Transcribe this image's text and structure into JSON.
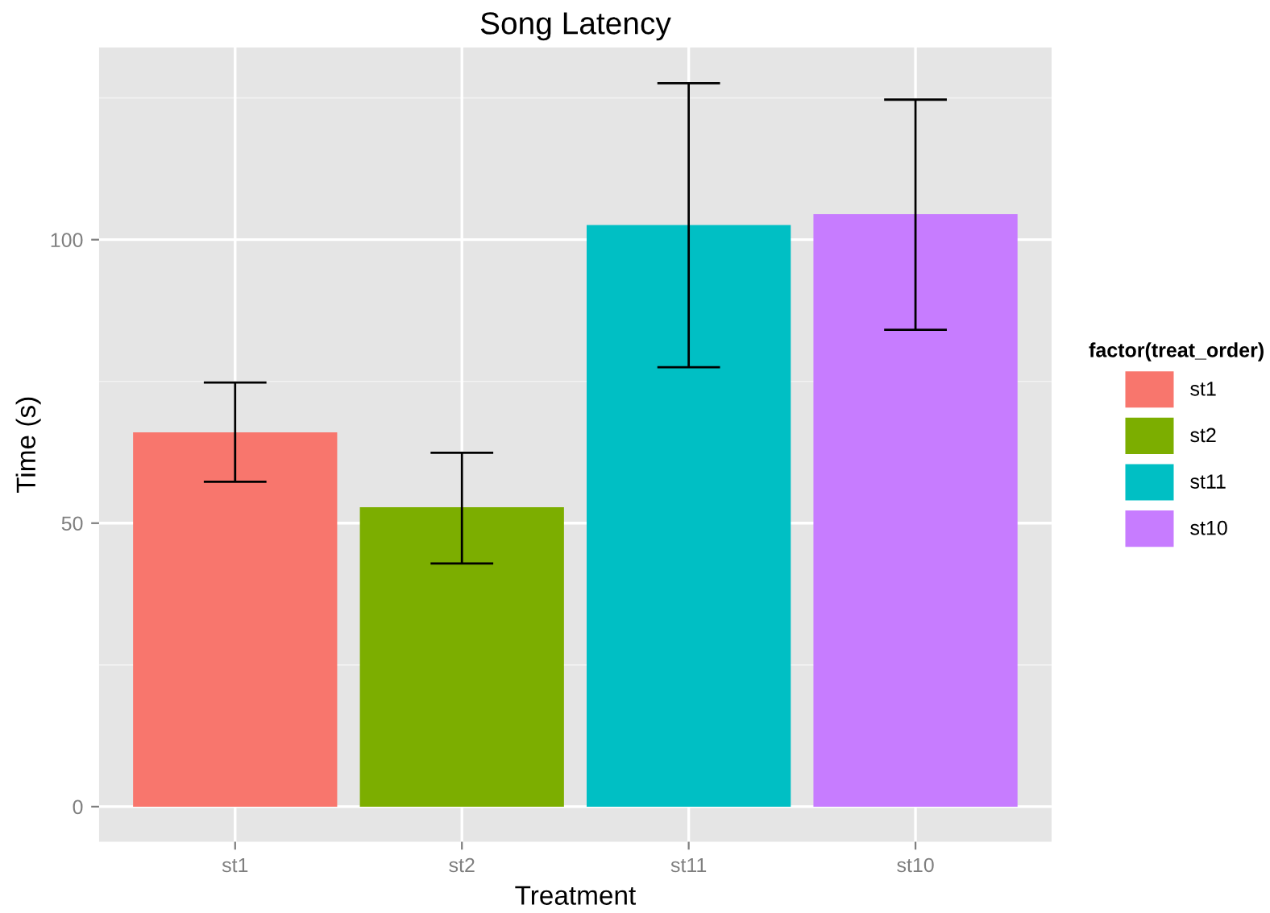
{
  "chart_data": {
    "type": "bar",
    "title": "Song Latency",
    "xlabel": "Treatment",
    "ylabel": "Time (s)",
    "legend_title": "factor(treat_order)",
    "categories": [
      "st1",
      "st2",
      "st11",
      "st10"
    ],
    "series": [
      {
        "name": "st1",
        "color": "#f8766d",
        "values": [
          66.0,
          null,
          null,
          null
        ],
        "errors": [
          [
            57.3,
            74.8
          ],
          null,
          null,
          null
        ]
      },
      {
        "name": "st2",
        "color": "#7cae00",
        "values": [
          null,
          52.8,
          null,
          null
        ],
        "errors": [
          null,
          [
            42.9,
            62.4
          ],
          null,
          null
        ]
      },
      {
        "name": "st11",
        "color": "#00bfc4",
        "values": [
          null,
          null,
          102.6,
          null
        ],
        "errors": [
          null,
          null,
          [
            77.5,
            127.6
          ],
          null
        ]
      },
      {
        "name": "st10",
        "color": "#c77cff",
        "values": [
          null,
          null,
          null,
          104.5
        ],
        "errors": [
          null,
          null,
          null,
          [
            84.1,
            124.7
          ]
        ]
      }
    ],
    "ylim": [
      -6.2,
      133.9
    ],
    "yticks": [
      0,
      50,
      100
    ],
    "grid": true,
    "legend": "right"
  }
}
